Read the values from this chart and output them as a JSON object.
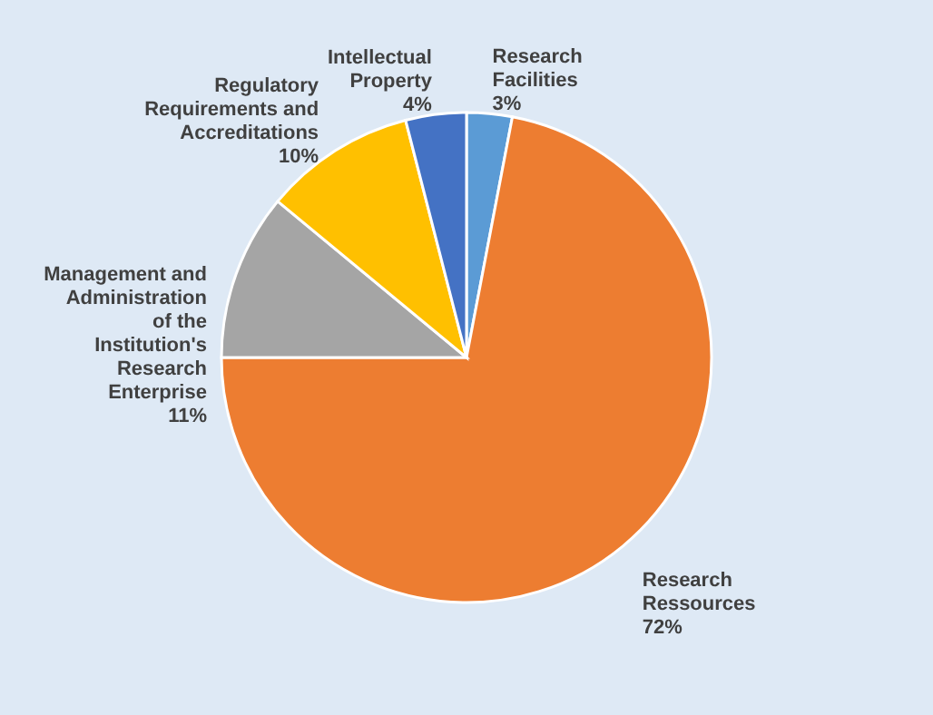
{
  "chart_data": {
    "type": "pie",
    "categories": [
      "Research Facilities",
      "Research Ressources",
      "Management and Administration of the Institution's Research Enterprise",
      "Regulatory Requirements and Accreditations",
      "Intellectual Property"
    ],
    "values": [
      3,
      72,
      11,
      10,
      4
    ],
    "value_labels": [
      "3%",
      "72%",
      "11%",
      "10%",
      "4%"
    ],
    "colors": [
      "#5b9bd5",
      "#ed7d31",
      "#a5a5a5",
      "#ffc000",
      "#4472c4"
    ]
  }
}
